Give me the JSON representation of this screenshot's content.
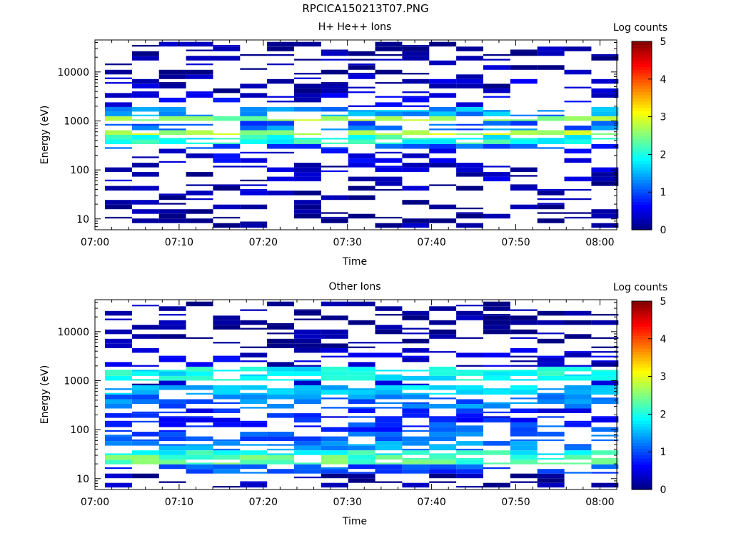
{
  "figure_title": "RPCICA150213T07.PNG",
  "chart_data": [
    {
      "type": "heatmap",
      "title": "H+ He++ Ions",
      "xlabel": "Time",
      "ylabel": "Energy (eV)",
      "x_ticks": [
        "07:00",
        "07:10",
        "07:20",
        "07:30",
        "07:40",
        "07:50",
        "08:00"
      ],
      "xlim": [
        "07:00",
        "08:02"
      ],
      "y_scale": "log",
      "ylim": [
        6,
        45000
      ],
      "y_ticks": [
        {
          "label": "10",
          "value": 10
        },
        {
          "label": "100",
          "value": 100
        },
        {
          "label": "1000",
          "value": 1000
        },
        {
          "label": "10000",
          "value": 10000
        }
      ],
      "colorbar": {
        "label": "Log counts",
        "min": 0,
        "max": 5,
        "ticks": [
          "0",
          "1",
          "2",
          "3",
          "4",
          "5"
        ]
      },
      "profile_log_counts": [
        {
          "energy_ev": 20,
          "value": 0.1
        },
        {
          "energy_ev": 35,
          "value": 0.2
        },
        {
          "energy_ev": 90,
          "value": 0.3
        },
        {
          "energy_ev": 200,
          "value": 0.5
        },
        {
          "energy_ev": 300,
          "value": 1.0
        },
        {
          "energy_ev": 450,
          "value": 2.0
        },
        {
          "energy_ev": 600,
          "value": 2.8
        },
        {
          "energy_ev": 800,
          "value": 1.2
        },
        {
          "energy_ev": 1000,
          "value": 1.0
        },
        {
          "energy_ev": 1200,
          "value": 2.6
        },
        {
          "energy_ev": 1500,
          "value": 1.4
        },
        {
          "energy_ev": 2500,
          "value": 0.5
        },
        {
          "energy_ev": 5000,
          "value": 0.3
        },
        {
          "energy_ev": 15000,
          "value": 0.15
        },
        {
          "energy_ev": 35000,
          "value": 0.1
        }
      ]
    },
    {
      "type": "heatmap",
      "title": "Other Ions",
      "xlabel": "Time",
      "ylabel": "Energy (eV)",
      "x_ticks": [
        "07:00",
        "07:10",
        "07:20",
        "07:30",
        "07:40",
        "07:50",
        "08:00"
      ],
      "xlim": [
        "07:00",
        "08:02"
      ],
      "y_scale": "log",
      "ylim": [
        6,
        45000
      ],
      "y_ticks": [
        {
          "label": "10",
          "value": 10
        },
        {
          "label": "100",
          "value": 100
        },
        {
          "label": "1000",
          "value": 1000
        },
        {
          "label": "10000",
          "value": 10000
        }
      ],
      "colorbar": {
        "label": "Log counts",
        "min": 0,
        "max": 5,
        "ticks": [
          "0",
          "1",
          "2",
          "3",
          "4",
          "5"
        ]
      },
      "profile_log_counts": [
        {
          "energy_ev": 10,
          "value": 0.15
        },
        {
          "energy_ev": 18,
          "value": 1.0
        },
        {
          "energy_ev": 25,
          "value": 2.3
        },
        {
          "energy_ev": 32,
          "value": 2.0
        },
        {
          "energy_ev": 45,
          "value": 1.3
        },
        {
          "energy_ev": 70,
          "value": 1.1
        },
        {
          "energy_ev": 120,
          "value": 0.9
        },
        {
          "energy_ev": 200,
          "value": 0.7
        },
        {
          "energy_ev": 400,
          "value": 1.2
        },
        {
          "energy_ev": 600,
          "value": 1.6
        },
        {
          "energy_ev": 900,
          "value": 0.3
        },
        {
          "energy_ev": 1300,
          "value": 1.9
        },
        {
          "energy_ev": 2500,
          "value": 0.4
        },
        {
          "energy_ev": 8000,
          "value": 0.1
        }
      ]
    }
  ]
}
